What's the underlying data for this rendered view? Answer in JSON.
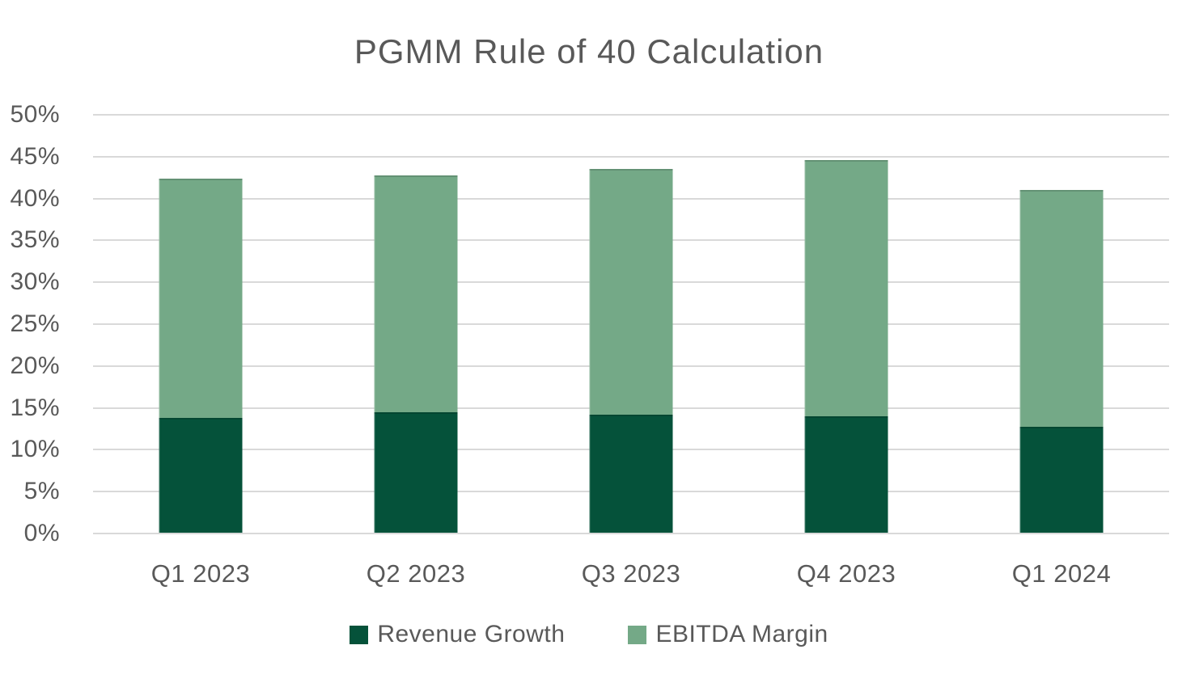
{
  "page": {
    "background": "#ffffff",
    "text_color": "#595959",
    "gridline_color": "#d9d9d9"
  },
  "chart_data": {
    "type": "bar",
    "stacked": true,
    "title": "PGMM Rule of 40 Calculation",
    "categories": [
      "Q1 2023",
      "Q2 2023",
      "Q3 2023",
      "Q4 2023",
      "Q1 2024"
    ],
    "series": [
      {
        "name": "Revenue Growth",
        "color": "#05523A",
        "values": [
          13.7,
          14.4,
          14.1,
          13.9,
          12.6
        ]
      },
      {
        "name": "EBITDA Margin",
        "color": "#74A987",
        "values": [
          28.6,
          28.3,
          29.3,
          30.6,
          28.3
        ]
      }
    ],
    "stack_totals": [
      42.3,
      42.7,
      43.4,
      44.5,
      40.9
    ],
    "ylim": [
      0,
      50
    ],
    "ytick_step": 5,
    "ytick_labels": [
      "0%",
      "5%",
      "10%",
      "15%",
      "20%",
      "25%",
      "30%",
      "35%",
      "40%",
      "45%",
      "50%"
    ],
    "xlabel": "",
    "ylabel": "",
    "grid": true,
    "legend_position": "bottom"
  }
}
